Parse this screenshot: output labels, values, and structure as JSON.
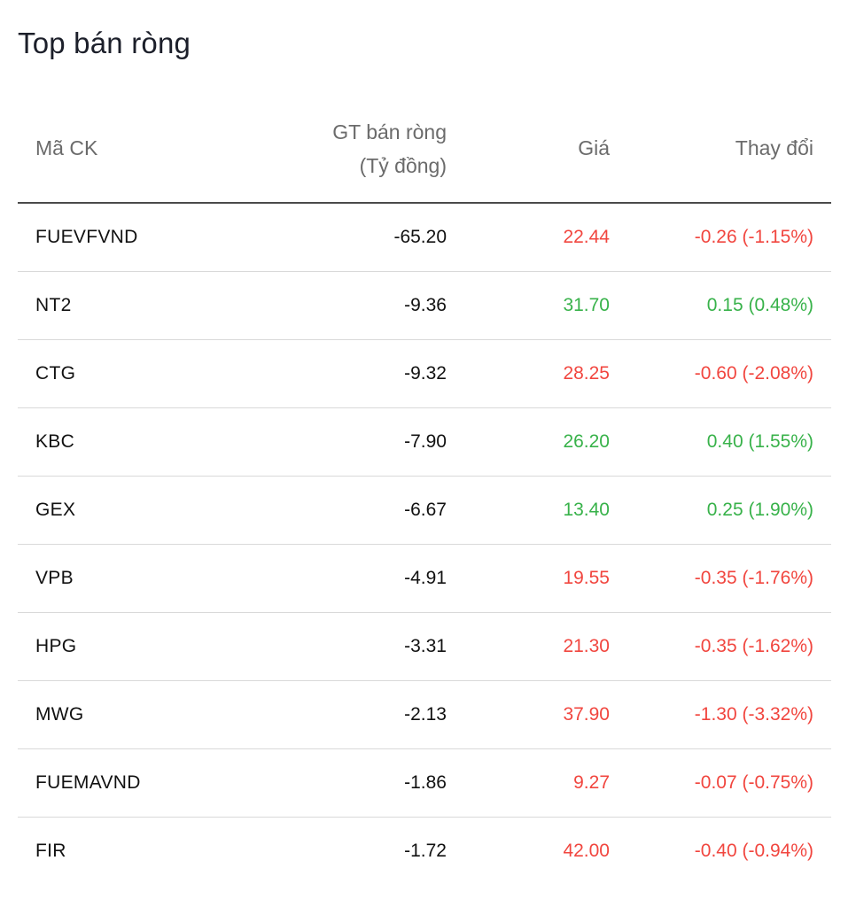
{
  "title": "Top bán ròng",
  "colors": {
    "down": "#f1463f",
    "up": "#38b24a"
  },
  "header": {
    "symbol": "Mã CK",
    "net_sell_line1": "GT bán ròng",
    "net_sell_line2": "(Tỷ đồng)",
    "price": "Giá",
    "change": "Thay đổi"
  },
  "rows": [
    {
      "symbol": "FUEVFVND",
      "net_sell": "-65.20",
      "price": "22.44",
      "change": "-0.26 (-1.15%)",
      "direction": "down"
    },
    {
      "symbol": "NT2",
      "net_sell": "-9.36",
      "price": "31.70",
      "change": "0.15 (0.48%)",
      "direction": "up"
    },
    {
      "symbol": "CTG",
      "net_sell": "-9.32",
      "price": "28.25",
      "change": "-0.60 (-2.08%)",
      "direction": "down"
    },
    {
      "symbol": "KBC",
      "net_sell": "-7.90",
      "price": "26.20",
      "change": "0.40 (1.55%)",
      "direction": "up"
    },
    {
      "symbol": "GEX",
      "net_sell": "-6.67",
      "price": "13.40",
      "change": "0.25 (1.90%)",
      "direction": "up"
    },
    {
      "symbol": "VPB",
      "net_sell": "-4.91",
      "price": "19.55",
      "change": "-0.35 (-1.76%)",
      "direction": "down"
    },
    {
      "symbol": "HPG",
      "net_sell": "-3.31",
      "price": "21.30",
      "change": "-0.35 (-1.62%)",
      "direction": "down"
    },
    {
      "symbol": "MWG",
      "net_sell": "-2.13",
      "price": "37.90",
      "change": "-1.30 (-3.32%)",
      "direction": "down"
    },
    {
      "symbol": "FUEMAVND",
      "net_sell": "-1.86",
      "price": "9.27",
      "change": "-0.07 (-0.75%)",
      "direction": "down"
    },
    {
      "symbol": "FIR",
      "net_sell": "-1.72",
      "price": "42.00",
      "change": "-0.40 (-0.94%)",
      "direction": "down"
    }
  ]
}
